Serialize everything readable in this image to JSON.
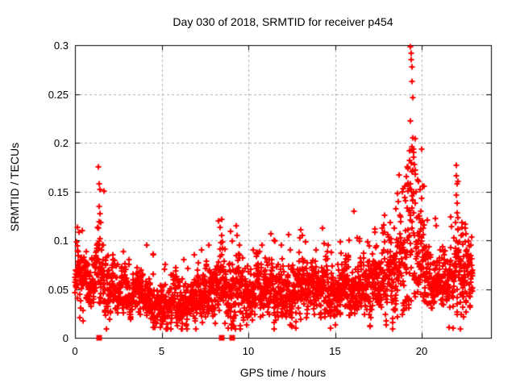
{
  "window": {
    "background": "#ffffff",
    "text_color": "#000000"
  },
  "chart_data": {
    "type": "scatter",
    "title": "Day 030 of 2018, SRMTID for receiver p454",
    "xlabel": "GPS time / hours",
    "ylabel": "SRMTID / TECUs",
    "xlim": [
      0,
      24
    ],
    "ylim": [
      0,
      0.3
    ],
    "xticks": {
      "values": [
        0,
        5,
        10,
        15,
        20
      ],
      "labels": [
        "0",
        "5",
        "10",
        "15",
        "20"
      ]
    },
    "yticks": {
      "values": [
        0,
        0.05,
        0.1,
        0.15,
        0.2,
        0.25,
        0.3
      ],
      "labels": [
        "0",
        "0.05",
        "0.1",
        "0.15",
        "0.2",
        "0.25",
        "0.3"
      ]
    },
    "grid": {
      "show": true,
      "color": "#b0b0b0",
      "dash": [
        3,
        3
      ]
    },
    "border_color": "#000000",
    "tick_length": 6,
    "marker": {
      "shape": "plus",
      "color": "#ff0000",
      "half_size": 3.5,
      "line_width": 2
    },
    "axis_markers": {
      "shape": "filled-square",
      "color": "#ff0000",
      "size": 7,
      "y": 0,
      "x_hours": [
        1.4,
        8.45,
        9.08
      ]
    },
    "series_name": "SRMTID",
    "generator": {
      "seed": 20180030,
      "rate": 115,
      "t_end": 22.95,
      "vmin": 0.009,
      "vmax": 0.3,
      "tail_prob": 0.055,
      "tail_scale": 3.2,
      "baseline": [
        [
          0.0,
          0.068,
          0.016
        ],
        [
          0.5,
          0.062,
          0.016
        ],
        [
          0.9,
          0.052,
          0.014
        ],
        [
          1.4,
          0.075,
          0.026
        ],
        [
          1.8,
          0.055,
          0.018
        ],
        [
          2.5,
          0.045,
          0.011
        ],
        [
          3.5,
          0.042,
          0.012
        ],
        [
          4.5,
          0.04,
          0.012
        ],
        [
          5.5,
          0.034,
          0.012
        ],
        [
          6.5,
          0.037,
          0.013
        ],
        [
          7.5,
          0.046,
          0.013
        ],
        [
          8.4,
          0.052,
          0.017
        ],
        [
          9.2,
          0.05,
          0.016
        ],
        [
          10.0,
          0.046,
          0.013
        ],
        [
          11.0,
          0.05,
          0.014
        ],
        [
          12.0,
          0.048,
          0.014
        ],
        [
          13.0,
          0.049,
          0.014
        ],
        [
          14.0,
          0.047,
          0.013
        ],
        [
          15.0,
          0.049,
          0.014
        ],
        [
          16.0,
          0.051,
          0.015
        ],
        [
          17.0,
          0.053,
          0.015
        ],
        [
          18.0,
          0.06,
          0.02
        ],
        [
          18.8,
          0.08,
          0.028
        ],
        [
          19.3,
          0.105,
          0.042
        ],
        [
          19.6,
          0.105,
          0.045
        ],
        [
          20.0,
          0.08,
          0.025
        ],
        [
          20.5,
          0.062,
          0.016
        ],
        [
          21.2,
          0.056,
          0.014
        ],
        [
          21.8,
          0.058,
          0.016
        ],
        [
          22.2,
          0.068,
          0.022
        ],
        [
          22.6,
          0.062,
          0.018
        ],
        [
          23.0,
          0.06,
          0.016
        ]
      ],
      "outliers": [
        [
          0.15,
          0.113
        ],
        [
          0.25,
          0.108
        ],
        [
          0.4,
          0.11
        ],
        [
          1.35,
          0.175
        ],
        [
          1.38,
          0.158
        ],
        [
          1.42,
          0.152
        ],
        [
          1.4,
          0.135
        ],
        [
          1.45,
          0.127
        ],
        [
          1.5,
          0.118
        ],
        [
          1.33,
          0.112
        ],
        [
          2.2,
          0.085
        ],
        [
          3.1,
          0.08
        ],
        [
          4.15,
          0.095
        ],
        [
          4.5,
          0.085
        ],
        [
          5.2,
          0.075
        ],
        [
          6.3,
          0.08
        ],
        [
          6.9,
          0.085
        ],
        [
          7.3,
          0.09
        ],
        [
          7.7,
          0.095
        ],
        [
          8.3,
          0.12
        ],
        [
          8.35,
          0.113
        ],
        [
          8.45,
          0.105
        ],
        [
          8.5,
          0.098
        ],
        [
          9.3,
          0.115
        ],
        [
          9.33,
          0.105
        ],
        [
          9.5,
          0.095
        ],
        [
          10.3,
          0.09
        ],
        [
          10.8,
          0.095
        ],
        [
          11.3,
          0.107
        ],
        [
          11.5,
          0.1
        ],
        [
          11.9,
          0.095
        ],
        [
          12.4,
          0.09
        ],
        [
          13.0,
          0.111
        ],
        [
          13.3,
          0.098
        ],
        [
          13.9,
          0.09
        ],
        [
          14.3,
          0.112
        ],
        [
          14.6,
          0.095
        ],
        [
          15.3,
          0.098
        ],
        [
          15.8,
          0.1
        ],
        [
          16.1,
          0.13
        ],
        [
          16.4,
          0.102
        ],
        [
          16.9,
          0.098
        ],
        [
          17.3,
          0.108
        ],
        [
          17.7,
          0.112
        ],
        [
          18.2,
          0.118
        ],
        [
          18.5,
          0.132
        ],
        [
          18.6,
          0.148
        ],
        [
          18.65,
          0.14
        ],
        [
          19.0,
          0.155
        ],
        [
          19.1,
          0.165
        ],
        [
          19.2,
          0.175
        ],
        [
          19.35,
          0.298
        ],
        [
          19.38,
          0.292
        ],
        [
          19.4,
          0.285
        ],
        [
          19.42,
          0.278
        ],
        [
          19.45,
          0.263
        ],
        [
          19.48,
          0.246
        ],
        [
          19.37,
          0.222
        ],
        [
          19.5,
          0.205
        ],
        [
          19.44,
          0.196
        ],
        [
          19.52,
          0.19
        ],
        [
          19.55,
          0.185
        ],
        [
          19.3,
          0.182
        ],
        [
          19.6,
          0.178
        ],
        [
          19.62,
          0.172
        ],
        [
          19.65,
          0.168
        ],
        [
          19.8,
          0.16
        ],
        [
          19.9,
          0.152
        ],
        [
          20.0,
          0.143
        ],
        [
          19.95,
          0.13
        ],
        [
          20.05,
          0.12
        ],
        [
          20.1,
          0.112
        ],
        [
          20.8,
          0.122
        ],
        [
          20.85,
          0.115
        ],
        [
          21.6,
          0.011
        ],
        [
          9.05,
          0.013
        ],
        [
          5.9,
          0.012
        ],
        [
          6.4,
          0.014
        ],
        [
          12.5,
          0.012
        ],
        [
          22.0,
          0.177
        ],
        [
          22.02,
          0.166
        ],
        [
          22.04,
          0.158
        ],
        [
          22.0,
          0.146
        ],
        [
          22.05,
          0.138
        ],
        [
          22.03,
          0.128
        ],
        [
          21.95,
          0.118
        ],
        [
          22.1,
          0.111
        ],
        [
          22.3,
          0.105
        ],
        [
          22.5,
          0.098
        ],
        [
          22.85,
          0.095
        ],
        [
          22.6,
          0.09
        ]
      ]
    }
  }
}
